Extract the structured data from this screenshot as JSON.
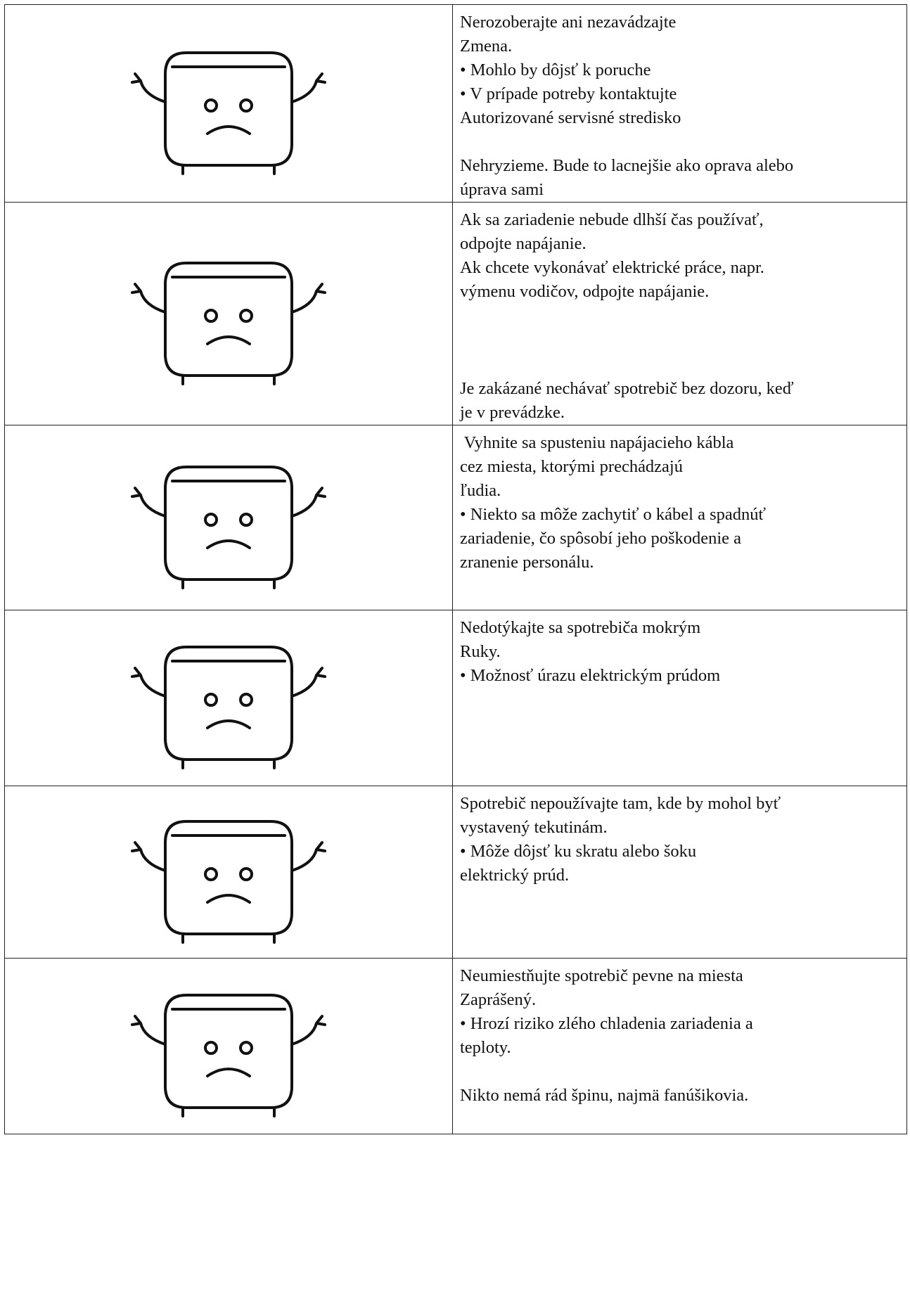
{
  "table": {
    "rows": [
      {
        "paragraphs": [
          [
            "Nerozoberajte ani nezavádzajte",
            "Zmena.",
            "• Mohlo by dôjsť k poruche",
            "• V prípade potreby kontaktujte",
            "Autorizované servisné stredisko"
          ],
          [
            "Nehryzieme. Bude to lacnejšie ako oprava alebo",
            "úprava sami"
          ]
        ]
      },
      {
        "paragraphs": [
          [
            "Ak sa zariadenie nebude dlhší čas používať,",
            "odpojte napájanie.",
            "Ak chcete vykonávať elektrické práce, napr.",
            "výmenu vodičov, odpojte napájanie."
          ],
          [
            "Je zakázané nechávať spotrebič bez dozoru, keď",
            "je v prevádzke."
          ]
        ]
      },
      {
        "paragraphs": [
          [
            " Vyhnite sa spusteniu napájacieho kábla",
            "cez miesta, ktorými prechádzajú",
            "ľudia.",
            "• Niekto sa môže zachytiť o kábel a spadnúť",
            "zariadenie, čo spôsobí jeho poškodenie a",
            "zranenie personálu."
          ]
        ]
      },
      {
        "paragraphs": [
          [
            "Nedotýkajte sa spotrebiča mokrým",
            "Ruky.",
            "• Možnosť úrazu elektrickým prúdom"
          ]
        ]
      },
      {
        "paragraphs": [
          [
            "Spotrebič nepoužívajte tam, kde by mohol byť",
            "vystavený tekutinám.",
            "• Môže dôjsť ku skratu alebo šoku",
            "elektrický prúd."
          ]
        ]
      },
      {
        "paragraphs": [
          [
            "Neumiestňujte spotrebič pevne na miesta",
            "Zaprášený.",
            "• Hrozí riziko zlého chladenia zariadenia a",
            "teploty."
          ],
          [
            "Nikto nemá rád špinu, najmä fanúšikovia."
          ]
        ]
      }
    ]
  }
}
